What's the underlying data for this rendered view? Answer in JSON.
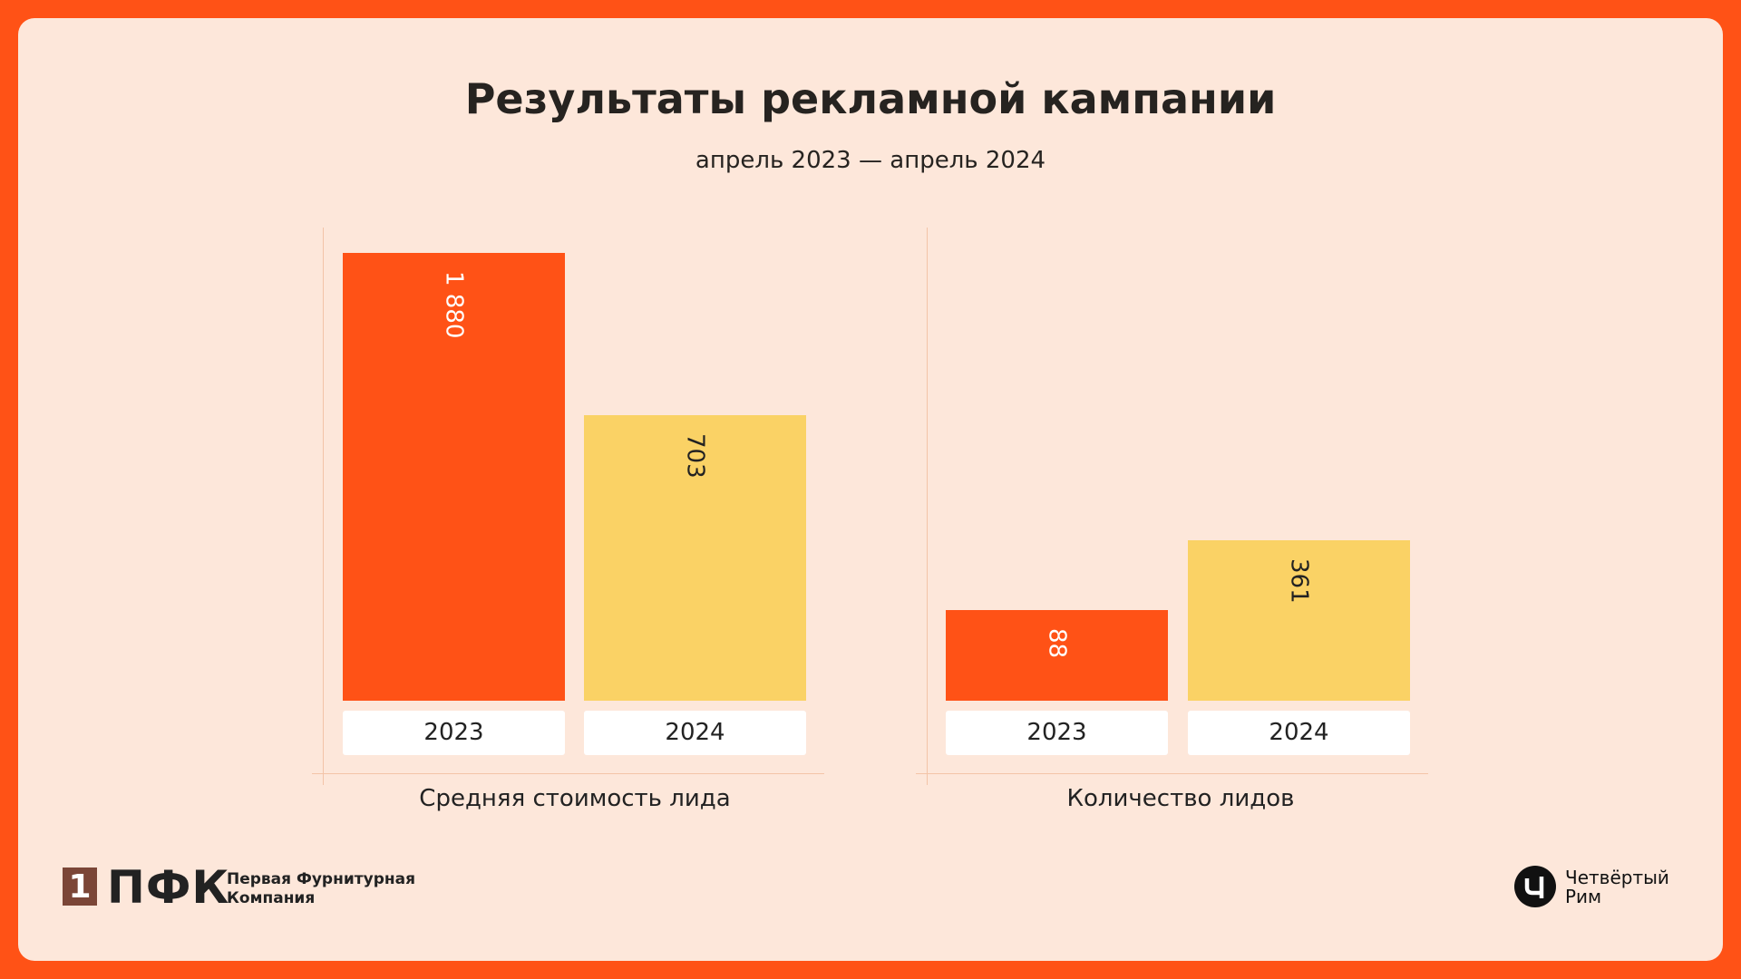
{
  "chart_data": [
    {
      "type": "bar",
      "title": "Результаты рекламной кампании",
      "subtitle": "апрель 2023 — апрель 2024",
      "xlabel": "Средняя стоимость лида",
      "categories": [
        "2023",
        "2024"
      ],
      "values": [
        1880,
        703
      ],
      "value_labels": [
        "1 880",
        "703"
      ],
      "colors": [
        "#ff5216",
        "#fad265"
      ]
    },
    {
      "type": "bar",
      "xlabel": "Количество лидов",
      "categories": [
        "2023",
        "2024"
      ],
      "values": [
        88,
        361
      ],
      "value_labels": [
        "88",
        "361"
      ],
      "colors": [
        "#ff5216",
        "#fad265"
      ]
    }
  ],
  "footer": {
    "left_logo_mark": "1",
    "left_logo_name": "ПФК",
    "left_logo_line1": "Первая Фурнитурная",
    "left_logo_line2": "Компания",
    "right_logo_line1": "Четвёртый",
    "right_logo_line2": "Рим"
  }
}
